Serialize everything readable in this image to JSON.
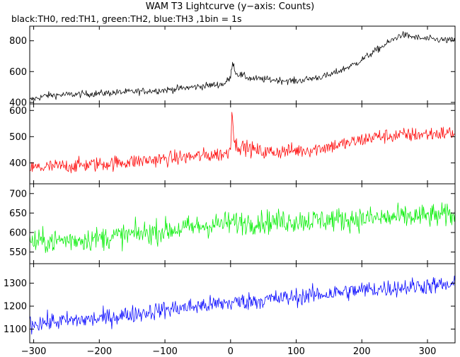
{
  "title": "WAM T3 Lightcurve (y−axis: Counts)",
  "subtitle": "black:TH0, red:TH1, green:TH2, blue:TH3 ,1bin = 1s",
  "chart_data": {
    "type": "line",
    "x_range": [
      -306,
      342
    ],
    "x_ticks": [
      -300,
      -200,
      -100,
      0,
      100,
      200,
      300
    ],
    "panels": [
      {
        "series": "TH0",
        "color": "#000000",
        "ylim": [
          390,
          895
        ],
        "y_ticks": [
          400,
          600,
          800
        ],
        "profile": [
          [
            -306,
            415
          ],
          [
            -280,
            445
          ],
          [
            -200,
            458
          ],
          [
            -100,
            480
          ],
          [
            -10,
            520
          ],
          [
            0,
            560
          ],
          [
            3,
            670
          ],
          [
            8,
            590
          ],
          [
            30,
            555
          ],
          [
            100,
            538
          ],
          [
            150,
            575
          ],
          [
            190,
            650
          ],
          [
            230,
            760
          ],
          [
            260,
            840
          ],
          [
            290,
            815
          ],
          [
            342,
            800
          ]
        ],
        "noise": 22
      },
      {
        "series": "TH1",
        "color": "#ff0000",
        "ylim": [
          320,
          625
        ],
        "y_ticks": [
          400,
          500,
          600
        ],
        "profile": [
          [
            -306,
            380
          ],
          [
            -200,
            395
          ],
          [
            -100,
            415
          ],
          [
            -5,
            435
          ],
          [
            0,
            460
          ],
          [
            2,
            610
          ],
          [
            6,
            470
          ],
          [
            50,
            440
          ],
          [
            120,
            450
          ],
          [
            180,
            475
          ],
          [
            220,
            500
          ],
          [
            342,
            515
          ]
        ],
        "noise": 28
      },
      {
        "series": "TH2",
        "color": "#00ee00",
        "ylim": [
          520,
          725
        ],
        "y_ticks": [
          550,
          600,
          650,
          700
        ],
        "profile": [
          [
            -306,
            575
          ],
          [
            -200,
            585
          ],
          [
            -100,
            605
          ],
          [
            0,
            625
          ],
          [
            100,
            630
          ],
          [
            200,
            635
          ],
          [
            342,
            645
          ]
        ],
        "noise": 30
      },
      {
        "series": "TH3",
        "color": "#0000ff",
        "ylim": [
          1040,
          1385
        ],
        "y_ticks": [
          1100,
          1200,
          1300
        ],
        "profile": [
          [
            -306,
            1125
          ],
          [
            -200,
            1145
          ],
          [
            -100,
            1185
          ],
          [
            0,
            1215
          ],
          [
            100,
            1240
          ],
          [
            200,
            1270
          ],
          [
            300,
            1290
          ],
          [
            342,
            1290
          ]
        ],
        "noise": 38
      }
    ]
  }
}
